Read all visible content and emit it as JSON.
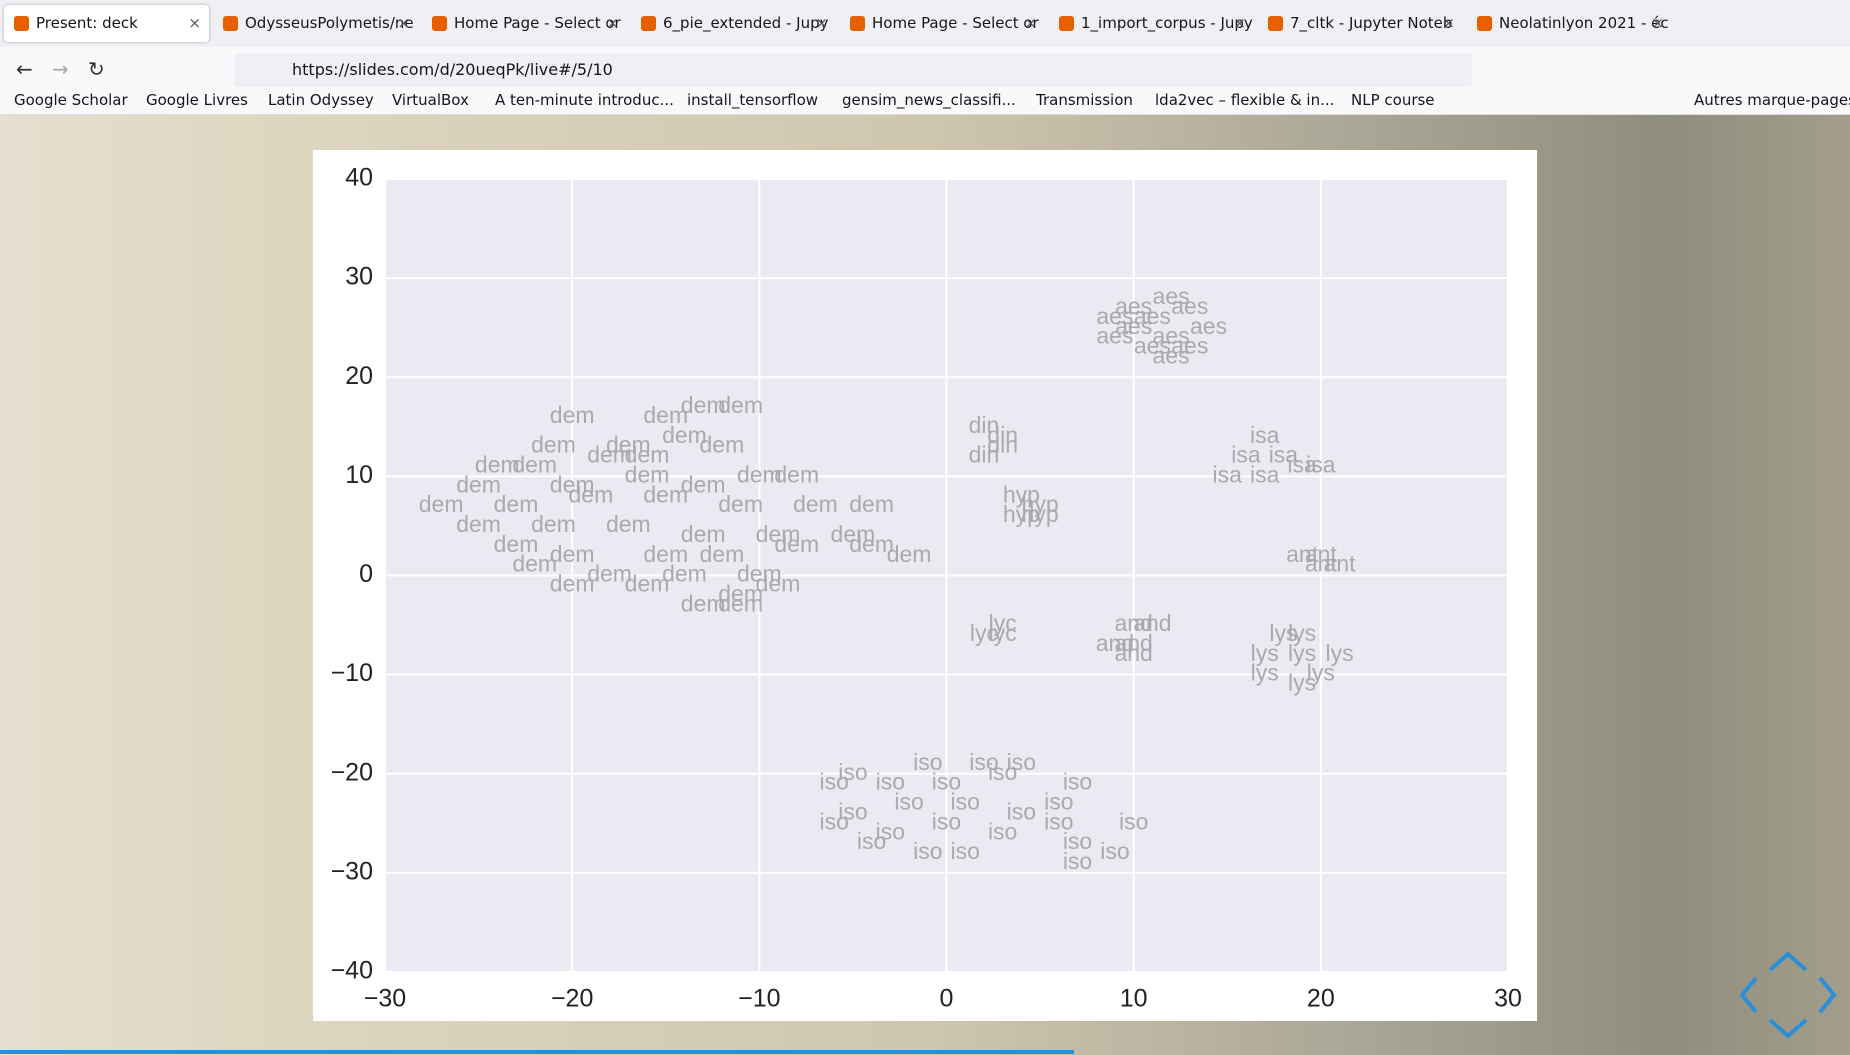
{
  "browser": {
    "tabs": [
      "Present: deck",
      "OdysseusPolymetis/ne",
      "Home Page - Select or",
      "6_pie_extended - Jupy",
      "Home Page - Select or",
      "1_import_corpus - Jupy",
      "7_cltk - Jupyter Noteb",
      "Neolatinlyon 2021 - éc"
    ],
    "url": "https://slides.com/d/20ueqPk/live#/5/10",
    "bookmarks": [
      "Google Scholar",
      "Google Livres",
      "Latin Odyssey",
      "VirtualBox",
      "A ten-minute introduc...",
      "install_tensorflow",
      "gensim_news_classifi...",
      "Transmission",
      "lda2vec – flexible & in...",
      "NLP course"
    ],
    "other_bookmarks": "Autres marque-pages"
  },
  "chart_data": {
    "type": "scatter",
    "grid": true,
    "color": "#aaaaaa",
    "background": "#eaeaf2",
    "xlim": [
      -30,
      30
    ],
    "ylim": [
      -40,
      40
    ],
    "xticks": [
      {
        "value": -30,
        "label": "−30"
      },
      {
        "value": -20,
        "label": "−20"
      },
      {
        "value": -10,
        "label": "−10"
      },
      0,
      10,
      20,
      30
    ],
    "yticks": [
      {
        "value": -40,
        "label": "−40"
      },
      {
        "value": -30,
        "label": "−30"
      },
      {
        "value": -20,
        "label": "−20"
      },
      {
        "value": -10,
        "label": "−10"
      },
      0,
      10,
      20,
      30,
      40
    ],
    "x": [
      -20,
      -15,
      -13,
      -11,
      -17,
      -21,
      -14,
      -12,
      -24,
      -22,
      -18,
      -16,
      -25,
      -20,
      -16,
      -13,
      -10,
      -8,
      -27,
      -23,
      -19,
      -15,
      -11,
      -7,
      -4,
      -25,
      -21,
      -17,
      -13,
      -9,
      -5,
      -2,
      -23,
      -20,
      -15,
      -12,
      -8,
      -4,
      -22,
      -18,
      -14,
      -10,
      -16,
      -11,
      -20,
      -13,
      -11,
      -9,
      12,
      10,
      13,
      9,
      11,
      14,
      10,
      12,
      9,
      11,
      13,
      12,
      2,
      3,
      3,
      2,
      4,
      5,
      4,
      5,
      17,
      16,
      18,
      19,
      15,
      17,
      20,
      19,
      20,
      21,
      20,
      2,
      3,
      3,
      10,
      11,
      9,
      10,
      10,
      18,
      19,
      17,
      19,
      21,
      17,
      19,
      20,
      -5,
      -1,
      2,
      4,
      -6,
      -3,
      0,
      3,
      7,
      -5,
      -2,
      1,
      4,
      6,
      -6,
      -3,
      0,
      3,
      6,
      10,
      -4,
      -1,
      1,
      7,
      9,
      7
    ],
    "values": [
      16,
      16,
      17,
      17,
      13,
      13,
      14,
      13,
      11,
      11,
      12,
      12,
      9,
      9,
      10,
      9,
      10,
      10,
      7,
      7,
      8,
      8,
      7,
      7,
      7,
      5,
      5,
      5,
      4,
      4,
      4,
      2,
      3,
      2,
      2,
      2,
      3,
      3,
      1,
      0,
      0,
      0,
      -1,
      -2,
      -1,
      -3,
      -3,
      -1,
      28,
      27,
      27,
      26,
      26,
      25,
      25,
      24,
      24,
      23,
      23,
      22,
      15,
      14,
      13,
      12,
      8,
      7,
      6,
      6,
      14,
      12,
      12,
      11,
      10,
      10,
      11,
      2,
      1,
      1,
      2,
      -6,
      -6,
      -5,
      -5,
      -5,
      -7,
      -7,
      -8,
      -6,
      -6,
      -8,
      -8,
      -8,
      -10,
      -11,
      -10,
      -20,
      -19,
      -19,
      -19,
      -21,
      -21,
      -21,
      -20,
      -21,
      -24,
      -23,
      -23,
      -24,
      -23,
      -25,
      -26,
      -25,
      -26,
      -25,
      -25,
      -27,
      -28,
      -28,
      -27,
      -28,
      -29
    ],
    "labels": [
      "dem",
      "dem",
      "dem",
      "dem",
      "dem",
      "dem",
      "dem",
      "dem",
      "dem",
      "dem",
      "dem",
      "dem",
      "dem",
      "dem",
      "dem",
      "dem",
      "dem",
      "dem",
      "dem",
      "dem",
      "dem",
      "dem",
      "dem",
      "dem",
      "dem",
      "dem",
      "dem",
      "dem",
      "dem",
      "dem",
      "dem",
      "dem",
      "dem",
      "dem",
      "dem",
      "dem",
      "dem",
      "dem",
      "dem",
      "dem",
      "dem",
      "dem",
      "dem",
      "dem",
      "dem",
      "dem",
      "dem",
      "dem",
      "aes",
      "aes",
      "aes",
      "aes",
      "aes",
      "aes",
      "aes",
      "aes",
      "aes",
      "aes",
      "aes",
      "aes",
      "din",
      "din",
      "din",
      "din",
      "hyp",
      "hyp",
      "hyp",
      "hyp",
      "isa",
      "isa",
      "isa",
      "isa",
      "isa",
      "isa",
      "isa",
      "ant",
      "ant",
      "ant",
      "ant",
      "lyc",
      "lyc",
      "lyc",
      "and",
      "and",
      "and",
      "and",
      "and",
      "lys",
      "lys",
      "lys",
      "lys",
      "lys",
      "lys",
      "lys",
      "lys",
      "iso",
      "iso",
      "iso",
      "iso",
      "iso",
      "iso",
      "iso",
      "iso",
      "iso",
      "iso",
      "iso",
      "iso",
      "iso",
      "iso",
      "iso",
      "iso",
      "iso",
      "iso",
      "iso",
      "iso",
      "iso",
      "iso",
      "iso",
      "iso",
      "iso",
      "iso"
    ]
  }
}
